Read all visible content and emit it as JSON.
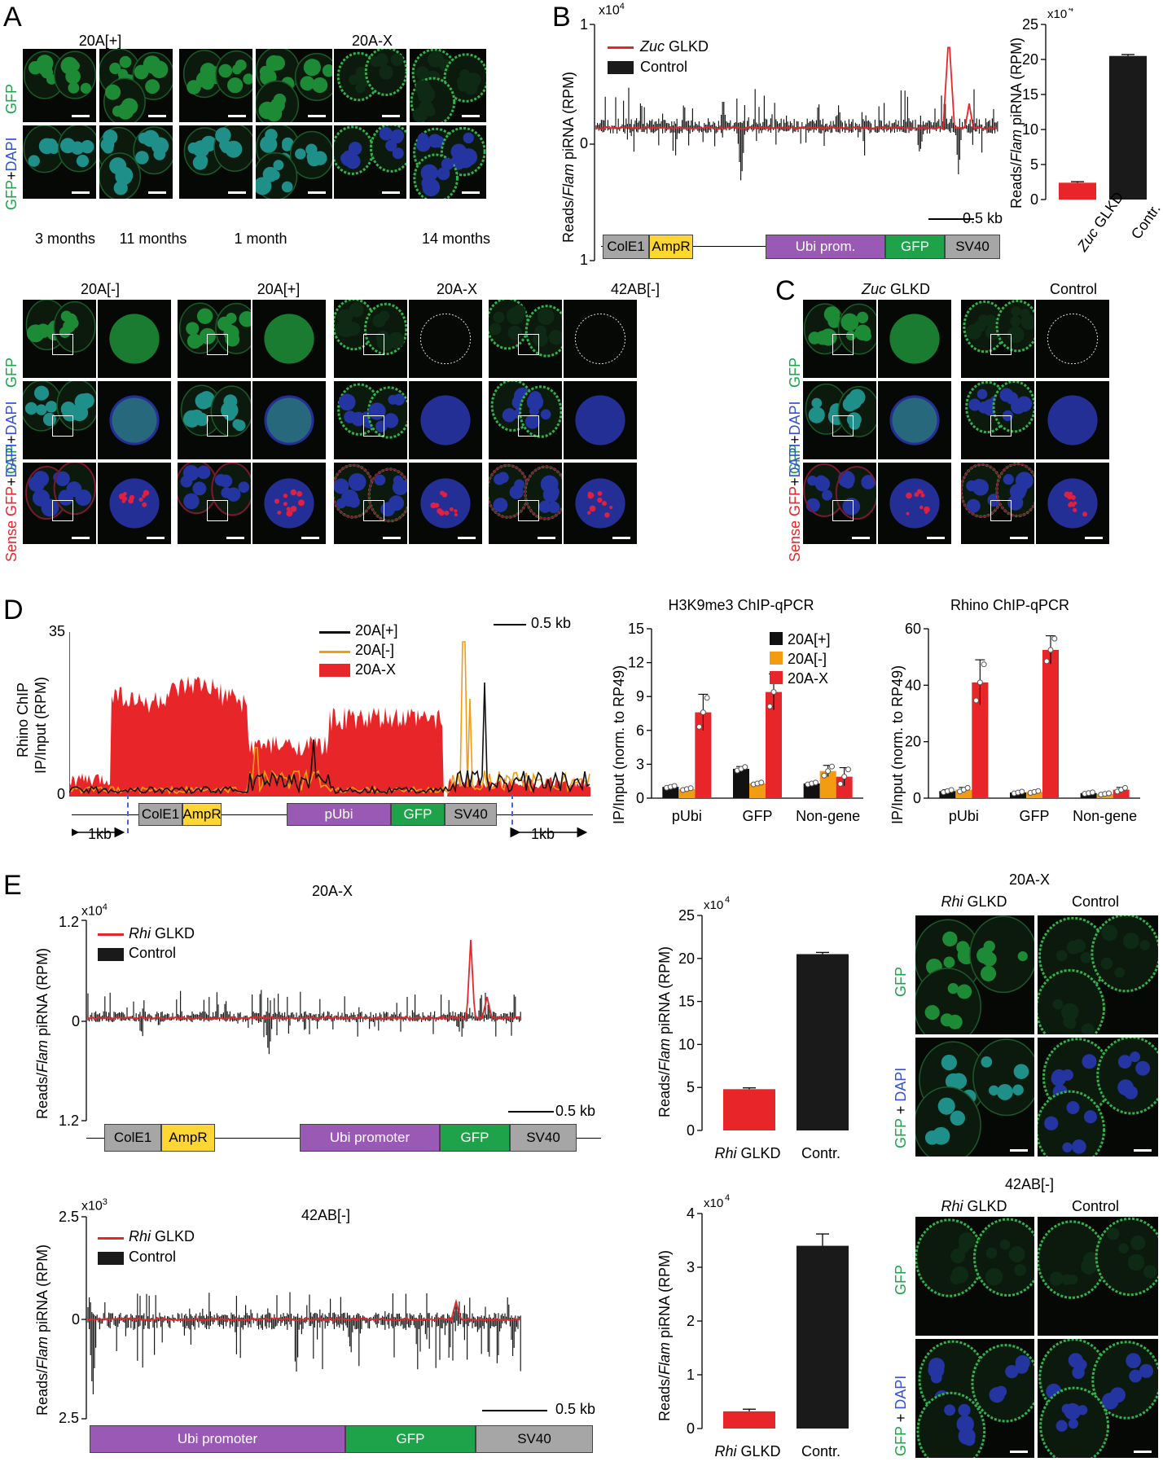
{
  "panels": {
    "A": "A",
    "B": "B",
    "C": "C",
    "D": "D",
    "E": "E"
  },
  "panel_a": {
    "top_headers": [
      "20A[+]",
      "20A-X"
    ],
    "row_labels": {
      "gfp": "GFP",
      "plus": "+",
      "dapi": "DAPI"
    },
    "ages": [
      "3 months",
      "11 months",
      "1 month",
      "14 months"
    ],
    "bottom_headers": [
      "20A[-]",
      "20A[+]",
      "20A-X",
      "42AB[-]"
    ],
    "sense_label": "Sense"
  },
  "panel_b": {
    "exponent": "x10",
    "exp_power": "4",
    "ytick_top": "1",
    "ytick_mid": "0",
    "ytick_bottom": "1",
    "ylabel_pre": "Reads/",
    "ylabel_it": "Flam",
    "ylabel_post": " piRNA (RPM)",
    "legend_kd_it": "Zuc",
    "legend_kd": " GLKD",
    "legend_ctrl": "Control",
    "scale": "0.5 kb",
    "genes": [
      "ColE1",
      "AmpR",
      "Ubi prom.",
      "GFP",
      "SV40"
    ],
    "colors": {
      "kd": "#e8262a",
      "ctrl": "#1a1a1a",
      "purple": "#9b59b6",
      "yellow": "#ffd633",
      "green": "#1ea34a",
      "grey": "#a6a6a6"
    }
  },
  "panel_b_bar": {
    "chart_data": {
      "type": "bar",
      "categories": [
        "Zuc GLKD",
        "Contr."
      ],
      "values": [
        2.4,
        20.5
      ],
      "errors": [
        0.15,
        0.2
      ],
      "ylim": [
        0,
        25
      ],
      "yticks": [
        "0",
        "5",
        "10",
        "15",
        "20",
        "25"
      ],
      "exponent": "x10",
      "exp_power": "4"
    },
    "xlabel_kd_it": "Zuc",
    "xlabel_kd": " GLKD",
    "xlabel_ctrl": "Contr."
  },
  "panel_c": {
    "headers_kd_it": "Zuc",
    "headers_kd": " GLKD",
    "header_ctrl": "Control"
  },
  "panel_d": {
    "ytop": "35",
    "ybottom": "0",
    "ylabel_1": "Rhino ChIP",
    "ylabel_2": "IP/Input (RPM)",
    "legend": [
      "20A[+]",
      "20A[-]",
      "20A-X"
    ],
    "scale": "0.5 kb",
    "genes": [
      "ColE1",
      "AmpR",
      "pUbi",
      "GFP",
      "SV40"
    ],
    "flank": "1kb",
    "colors": {
      "p": "#111111",
      "m": "#f39c12",
      "x": "#e8262a"
    }
  },
  "h3k9": {
    "chart_data": {
      "type": "bar",
      "title": "H3K9me3 ChIP-qPCR",
      "ylabel": "IP/Input (norm. to RP49)",
      "categories": [
        "pUbi",
        "GFP",
        "Non-gene"
      ],
      "ylim": [
        0,
        15
      ],
      "yticks": [
        "0",
        "3",
        "6",
        "9",
        "12",
        "15"
      ],
      "series": [
        {
          "name": "20A[+]",
          "values": [
            1.0,
            2.6,
            1.3
          ],
          "errors": [
            0.1,
            0.2,
            0.1
          ]
        },
        {
          "name": "20A[-]",
          "values": [
            0.8,
            1.3,
            2.4
          ],
          "errors": [
            0.1,
            0.1,
            0.5
          ]
        },
        {
          "name": "20A-X",
          "values": [
            7.6,
            9.4,
            1.9
          ],
          "errors": [
            1.6,
            1.6,
            0.8
          ]
        }
      ]
    }
  },
  "rhino_qpcr": {
    "chart_data": {
      "type": "bar",
      "title": "Rhino ChIP-qPCR",
      "ylabel": "IP/Input (norm. to RP49)",
      "categories": [
        "pUbi",
        "GFP",
        "Non-gene"
      ],
      "ylim": [
        0,
        60
      ],
      "yticks": [
        "0",
        "20",
        "40",
        "60"
      ],
      "series": [
        {
          "name": "20A[+]",
          "values": [
            2.5,
            2.0,
            1.8
          ],
          "errors": [
            0.5,
            0.4,
            0.3
          ]
        },
        {
          "name": "20A[-]",
          "values": [
            3.0,
            2.2,
            1.5
          ],
          "errors": [
            0.8,
            0.4,
            0.3
          ]
        },
        {
          "name": "20A-X",
          "values": [
            41,
            52.5,
            3.0
          ],
          "errors": [
            8,
            5,
            0.8
          ]
        }
      ]
    }
  },
  "panel_e1": {
    "title": "20A-X",
    "exponent": "x10",
    "exp_power": "4",
    "ytop": "1.2",
    "ymid": "0",
    "ybottom": "1.2",
    "legend_kd_it": "Rhi",
    "legend_kd": " GLKD",
    "legend_ctrl": "Control",
    "scale": "0.5 kb",
    "genes": [
      "ColE1",
      "AmpR",
      "Ubi promoter",
      "GFP",
      "SV40"
    ]
  },
  "panel_e1_bar": {
    "chart_data": {
      "type": "bar",
      "categories": [
        "Rhi GLKD",
        "Contr."
      ],
      "values": [
        4.8,
        20.5
      ],
      "errors": [
        0.15,
        0.2
      ],
      "ylim": [
        0,
        25
      ],
      "yticks": [
        "0",
        "5",
        "10",
        "15",
        "20",
        "25"
      ],
      "exponent": "x10",
      "exp_power": "4"
    },
    "xlabel_kd_it": "Rhi",
    "xlabel_kd": " GLKD",
    "xlabel_ctrl": "Contr."
  },
  "panel_e1_micro": {
    "title": "20A-X",
    "kd_it": "Rhi",
    "kd": " GLKD",
    "ctrl": "Control",
    "gfp": "GFP",
    "plus": " + ",
    "dapi": "DAPI"
  },
  "panel_e2": {
    "title": "42AB[-]",
    "exponent": "x10",
    "exp_power": "3",
    "ytop": "2.5",
    "ymid": "0",
    "ybottom": "2.5",
    "legend_kd_it": "Rhi",
    "legend_kd": " GLKD",
    "legend_ctrl": "Control",
    "scale": "0.5 kb",
    "genes": [
      "Ubi promoter",
      "GFP",
      "SV40"
    ]
  },
  "panel_e2_bar": {
    "chart_data": {
      "type": "bar",
      "categories": [
        "Rhi GLKD",
        "Contr."
      ],
      "values": [
        0.32,
        3.4
      ],
      "errors": [
        0.04,
        0.22
      ],
      "ylim": [
        0,
        4
      ],
      "yticks": [
        "0",
        "1",
        "2",
        "3",
        "4"
      ],
      "exponent": "x10",
      "exp_power": "4"
    },
    "xlabel_kd_it": "Rhi",
    "xlabel_kd": " GLKD",
    "xlabel_ctrl": "Contr."
  },
  "panel_e2_micro": {
    "title": "42AB[-]",
    "kd_it": "Rhi",
    "kd": " GLKD",
    "ctrl": "Control",
    "gfp": "GFP",
    "plus": " + ",
    "dapi": "DAPI"
  }
}
